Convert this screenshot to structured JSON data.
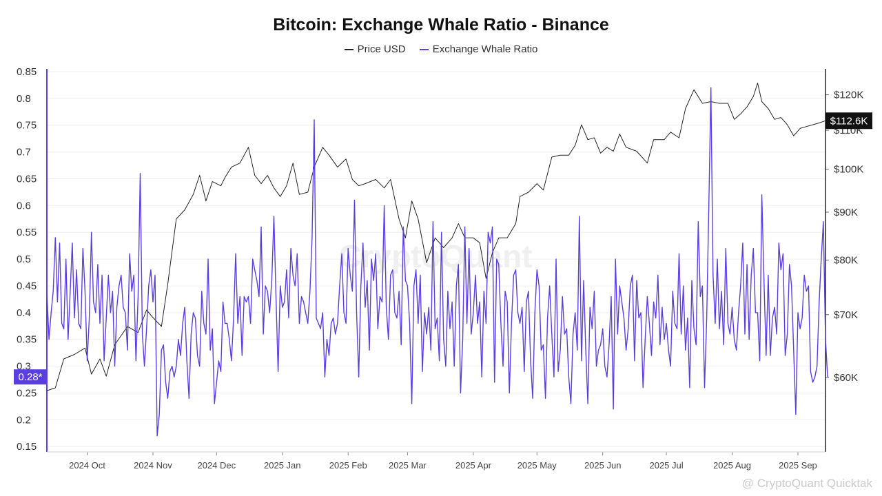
{
  "title": "Bitcoin: Exchange Whale Ratio - Binance",
  "legend": {
    "price_label": "Price USD",
    "ratio_label": "Exchange Whale Ratio"
  },
  "colors": {
    "price": "#222222",
    "ratio": "#5b3ee0",
    "price_tag_bg": "#111111",
    "ratio_tag_bg": "#5b3ee0"
  },
  "watermark": "CryptoQuant",
  "brand": "@ CryptoQuant Quicktak",
  "current": {
    "ratio_label": "0.28*",
    "ratio_value": 0.28,
    "price_label": "$112.6K",
    "price_value": 112.6
  },
  "chart_data": {
    "type": "line",
    "x_range": [
      "2024-09-12",
      "2025-09-14"
    ],
    "x_ticks": [
      {
        "date": "2024-10-01",
        "label": "2024 Oct"
      },
      {
        "date": "2024-11-01",
        "label": "2024 Nov"
      },
      {
        "date": "2024-12-01",
        "label": "2024 Dec"
      },
      {
        "date": "2025-01-01",
        "label": "2025 Jan"
      },
      {
        "date": "2025-02-01",
        "label": "2025 Feb"
      },
      {
        "date": "2025-03-01",
        "label": "2025 Mar"
      },
      {
        "date": "2025-04-01",
        "label": "2025 Apr"
      },
      {
        "date": "2025-05-01",
        "label": "2025 May"
      },
      {
        "date": "2025-06-01",
        "label": "2025 Jun"
      },
      {
        "date": "2025-07-01",
        "label": "2025 Jul"
      },
      {
        "date": "2025-08-01",
        "label": "2025 Aug"
      },
      {
        "date": "2025-09-01",
        "label": "2025 Sep"
      }
    ],
    "y_left": {
      "range": [
        0.14,
        0.85
      ],
      "ticks": [
        0.85,
        0.8,
        0.75,
        0.7,
        0.65,
        0.6,
        0.55,
        0.5,
        0.45,
        0.4,
        0.35,
        0.3,
        0.25,
        0.2,
        0.15
      ],
      "tick_labels": [
        "0.85",
        "0.8",
        "0.75",
        "0.7",
        "0.65",
        "0.6",
        "0.55",
        "0.5",
        "0.45",
        "0.4",
        "0.35",
        "0.3",
        "0.25",
        "0.2",
        "0.15"
      ]
    },
    "y_right": {
      "scale": "log",
      "range_k": [
        50,
        127
      ],
      "ticks_k": [
        120,
        110,
        100,
        90,
        80,
        70,
        60
      ],
      "tick_labels": [
        "$120K",
        "$110K",
        "$100K",
        "$90K",
        "$80K",
        "$70K",
        "$60K"
      ]
    },
    "grid": true,
    "series": [
      {
        "name": "Price USD",
        "axis": "right",
        "unit": "thousand USD",
        "points": [
          [
            "2024-09-12",
            58.1
          ],
          [
            "2024-09-16",
            58.5
          ],
          [
            "2024-09-20",
            62.8
          ],
          [
            "2024-09-25",
            63.5
          ],
          [
            "2024-09-30",
            64.5
          ],
          [
            "2024-10-03",
            60.5
          ],
          [
            "2024-10-07",
            62.8
          ],
          [
            "2024-10-10",
            60.2
          ],
          [
            "2024-10-14",
            65.0
          ],
          [
            "2024-10-20",
            68.0
          ],
          [
            "2024-10-25",
            67.0
          ],
          [
            "2024-10-29",
            70.8
          ],
          [
            "2024-11-01",
            69.5
          ],
          [
            "2024-11-05",
            68.0
          ],
          [
            "2024-11-08",
            75.5
          ],
          [
            "2024-11-12",
            88.5
          ],
          [
            "2024-11-16",
            90.5
          ],
          [
            "2024-11-20",
            94.0
          ],
          [
            "2024-11-23",
            98.5
          ],
          [
            "2024-11-26",
            92.5
          ],
          [
            "2024-11-29",
            97.0
          ],
          [
            "2024-12-03",
            96.0
          ],
          [
            "2024-12-05",
            98.0
          ],
          [
            "2024-12-08",
            100.5
          ],
          [
            "2024-12-12",
            101.5
          ],
          [
            "2024-12-16",
            105.5
          ],
          [
            "2024-12-19",
            98.5
          ],
          [
            "2024-12-22",
            96.5
          ],
          [
            "2024-12-25",
            98.5
          ],
          [
            "2024-12-28",
            95.5
          ],
          [
            "2024-12-31",
            93.5
          ],
          [
            "2025-01-03",
            96.0
          ],
          [
            "2025-01-06",
            101.5
          ],
          [
            "2025-01-09",
            94.0
          ],
          [
            "2025-01-13",
            94.5
          ],
          [
            "2025-01-16",
            100.5
          ],
          [
            "2025-01-20",
            105.5
          ],
          [
            "2025-01-23",
            103.5
          ],
          [
            "2025-01-27",
            100.5
          ],
          [
            "2025-01-31",
            102.5
          ],
          [
            "2025-02-03",
            97.5
          ],
          [
            "2025-02-06",
            96.0
          ],
          [
            "2025-02-09",
            96.5
          ],
          [
            "2025-02-14",
            97.5
          ],
          [
            "2025-02-18",
            95.5
          ],
          [
            "2025-02-21",
            97.5
          ],
          [
            "2025-02-25",
            88.5
          ],
          [
            "2025-02-28",
            84.5
          ],
          [
            "2025-03-03",
            92.5
          ],
          [
            "2025-03-06",
            88.5
          ],
          [
            "2025-03-10",
            79.5
          ],
          [
            "2025-03-14",
            84.5
          ],
          [
            "2025-03-18",
            82.5
          ],
          [
            "2025-03-22",
            84.5
          ],
          [
            "2025-03-25",
            87.5
          ],
          [
            "2025-03-28",
            84.5
          ],
          [
            "2025-04-01",
            84.5
          ],
          [
            "2025-04-04",
            83.5
          ],
          [
            "2025-04-07",
            76.5
          ],
          [
            "2025-04-10",
            81.5
          ],
          [
            "2025-04-13",
            84.5
          ],
          [
            "2025-04-17",
            84.5
          ],
          [
            "2025-04-21",
            87.5
          ],
          [
            "2025-04-23",
            93.5
          ],
          [
            "2025-04-27",
            94.5
          ],
          [
            "2025-05-01",
            96.5
          ],
          [
            "2025-05-04",
            95.0
          ],
          [
            "2025-05-08",
            103.0
          ],
          [
            "2025-05-12",
            103.5
          ],
          [
            "2025-05-16",
            103.5
          ],
          [
            "2025-05-19",
            106.0
          ],
          [
            "2025-05-22",
            111.5
          ],
          [
            "2025-05-25",
            107.5
          ],
          [
            "2025-05-28",
            108.0
          ],
          [
            "2025-05-31",
            104.0
          ],
          [
            "2025-06-03",
            105.5
          ],
          [
            "2025-06-06",
            104.5
          ],
          [
            "2025-06-09",
            109.0
          ],
          [
            "2025-06-12",
            105.5
          ],
          [
            "2025-06-17",
            104.5
          ],
          [
            "2025-06-22",
            101.5
          ],
          [
            "2025-06-25",
            107.5
          ],
          [
            "2025-06-30",
            107.5
          ],
          [
            "2025-07-03",
            109.5
          ],
          [
            "2025-07-07",
            108.0
          ],
          [
            "2025-07-10",
            116.0
          ],
          [
            "2025-07-14",
            121.5
          ],
          [
            "2025-07-18",
            117.5
          ],
          [
            "2025-07-22",
            118.0
          ],
          [
            "2025-07-26",
            117.5
          ],
          [
            "2025-07-30",
            117.5
          ],
          [
            "2025-08-02",
            113.0
          ],
          [
            "2025-08-05",
            114.5
          ],
          [
            "2025-08-08",
            116.5
          ],
          [
            "2025-08-11",
            119.5
          ],
          [
            "2025-08-13",
            123.5
          ],
          [
            "2025-08-15",
            118.0
          ],
          [
            "2025-08-18",
            116.0
          ],
          [
            "2025-08-21",
            113.0
          ],
          [
            "2025-08-24",
            113.5
          ],
          [
            "2025-08-27",
            111.5
          ],
          [
            "2025-08-30",
            108.5
          ],
          [
            "2025-09-02",
            110.5
          ],
          [
            "2025-09-05",
            111.0
          ],
          [
            "2025-09-08",
            111.5
          ],
          [
            "2025-09-11",
            112.0
          ],
          [
            "2025-09-14",
            112.6
          ]
        ]
      },
      {
        "name": "Exchange Whale Ratio",
        "axis": "left",
        "sampling": "1 value per day starting 2024-09-12",
        "values": [
          0.44,
          0.35,
          0.4,
          0.44,
          0.54,
          0.42,
          0.53,
          0.38,
          0.37,
          0.5,
          0.35,
          0.44,
          0.53,
          0.39,
          0.48,
          0.38,
          0.37,
          0.52,
          0.44,
          0.31,
          0.39,
          0.55,
          0.42,
          0.4,
          0.49,
          0.38,
          0.47,
          0.31,
          0.39,
          0.47,
          0.4,
          0.44,
          0.3,
          0.41,
          0.45,
          0.47,
          0.41,
          0.4,
          0.33,
          0.51,
          0.44,
          0.47,
          0.31,
          0.43,
          0.66,
          0.36,
          0.3,
          0.37,
          0.45,
          0.48,
          0.42,
          0.47,
          0.17,
          0.21,
          0.33,
          0.34,
          0.27,
          0.24,
          0.29,
          0.3,
          0.28,
          0.3,
          0.35,
          0.32,
          0.38,
          0.41,
          0.31,
          0.24,
          0.36,
          0.4,
          0.39,
          0.32,
          0.3,
          0.44,
          0.38,
          0.36,
          0.5,
          0.33,
          0.37,
          0.23,
          0.27,
          0.31,
          0.29,
          0.42,
          0.38,
          0.38,
          0.35,
          0.31,
          0.39,
          0.51,
          0.38,
          0.43,
          0.32,
          0.43,
          0.42,
          0.43,
          0.38,
          0.5,
          0.48,
          0.46,
          0.43,
          0.56,
          0.36,
          0.45,
          0.44,
          0.4,
          0.46,
          0.58,
          0.43,
          0.29,
          0.45,
          0.41,
          0.42,
          0.48,
          0.39,
          0.52,
          0.47,
          0.45,
          0.51,
          0.38,
          0.43,
          0.42,
          0.4,
          0.38,
          0.44,
          0.54,
          0.76,
          0.39,
          0.38,
          0.37,
          0.4,
          0.28,
          0.35,
          0.32,
          0.38,
          0.39,
          0.36,
          0.38,
          0.45,
          0.51,
          0.4,
          0.38,
          0.52,
          0.47,
          0.44,
          0.61,
          0.4,
          0.28,
          0.45,
          0.53,
          0.41,
          0.46,
          0.33,
          0.5,
          0.46,
          0.51,
          0.37,
          0.43,
          0.42,
          0.6,
          0.41,
          0.35,
          0.47,
          0.48,
          0.4,
          0.39,
          0.44,
          0.34,
          0.56,
          0.46,
          0.45,
          0.38,
          0.23,
          0.45,
          0.48,
          0.38,
          0.47,
          0.29,
          0.4,
          0.36,
          0.41,
          0.33,
          0.57,
          0.37,
          0.39,
          0.31,
          0.55,
          0.35,
          0.3,
          0.44,
          0.37,
          0.42,
          0.3,
          0.45,
          0.49,
          0.25,
          0.35,
          0.56,
          0.38,
          0.52,
          0.36,
          0.4,
          0.47,
          0.38,
          0.42,
          0.28,
          0.44,
          0.38,
          0.55,
          0.53,
          0.56,
          0.27,
          0.5,
          0.49,
          0.38,
          0.3,
          0.44,
          0.42,
          0.25,
          0.38,
          0.47,
          0.48,
          0.4,
          0.38,
          0.41,
          0.29,
          0.42,
          0.44,
          0.31,
          0.24,
          0.4,
          0.48,
          0.45,
          0.33,
          0.34,
          0.24,
          0.39,
          0.45,
          0.36,
          0.28,
          0.5,
          0.29,
          0.33,
          0.43,
          0.36,
          0.37,
          0.28,
          0.23,
          0.36,
          0.4,
          0.33,
          0.58,
          0.31,
          0.46,
          0.33,
          0.23,
          0.41,
          0.37,
          0.44,
          0.3,
          0.33,
          0.34,
          0.37,
          0.3,
          0.28,
          0.34,
          0.43,
          0.22,
          0.5,
          0.36,
          0.45,
          0.42,
          0.39,
          0.33,
          0.37,
          0.45,
          0.47,
          0.31,
          0.46,
          0.39,
          0.4,
          0.26,
          0.35,
          0.43,
          0.38,
          0.32,
          0.42,
          0.39,
          0.47,
          0.34,
          0.41,
          0.35,
          0.38,
          0.33,
          0.3,
          0.44,
          0.38,
          0.37,
          0.51,
          0.36,
          0.45,
          0.33,
          0.39,
          0.26,
          0.46,
          0.37,
          0.34,
          0.57,
          0.43,
          0.45,
          0.26,
          0.39,
          0.6,
          0.82,
          0.47,
          0.38,
          0.5,
          0.37,
          0.44,
          0.34,
          0.52,
          0.38,
          0.36,
          0.41,
          0.35,
          0.33,
          0.4,
          0.45,
          0.53,
          0.36,
          0.49,
          0.35,
          0.47,
          0.52,
          0.4,
          0.4,
          0.31,
          0.62,
          0.46,
          0.32,
          0.47,
          0.32,
          0.39,
          0.41,
          0.36,
          0.53,
          0.48,
          0.51,
          0.32,
          0.36,
          0.49,
          0.45,
          0.33,
          0.21,
          0.4,
          0.37,
          0.39,
          0.47,
          0.44,
          0.45,
          0.29,
          0.27,
          0.28,
          0.3,
          0.42,
          0.5,
          0.57,
          0.35,
          0.28
        ]
      }
    ]
  }
}
